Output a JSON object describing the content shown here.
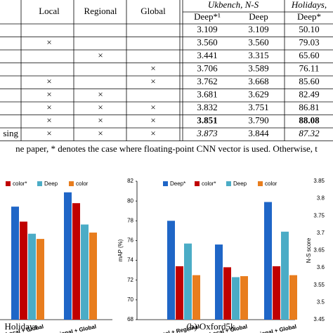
{
  "table": {
    "group_headers": [
      "Local",
      "Regional",
      "Global",
      "Ukbench, N-S",
      "Holidays,"
    ],
    "subheaders": [
      "Deep*¹",
      "Deep",
      "Deep*"
    ],
    "rows": [
      [
        null,
        null,
        null,
        null,
        "3.109",
        "3.109",
        "50.10"
      ],
      [
        null,
        "×",
        null,
        null,
        "3.560",
        "3.560",
        "79.03"
      ],
      [
        null,
        null,
        "×",
        null,
        "3.441",
        "3.315",
        "65.60"
      ],
      [
        null,
        null,
        null,
        "×",
        "3.706",
        "3.589",
        "76.11"
      ],
      [
        null,
        "×",
        null,
        "×",
        "3.762",
        "3.668",
        "85.60"
      ],
      [
        null,
        "×",
        "×",
        null,
        "3.681",
        "3.629",
        "82.49"
      ],
      [
        null,
        "×",
        "×",
        "×",
        "3.832",
        "3.751",
        "86.81"
      ],
      [
        null,
        "×",
        "×",
        "×",
        "3.851",
        "3.790",
        "88.08"
      ],
      [
        "sing",
        "×",
        "×",
        "×",
        "3.873",
        "3.844",
        "87.32"
      ]
    ]
  },
  "caption": "ne paper, * denotes the case where floating-point CNN vector is used. Otherwise, t",
  "chart_data": [
    {
      "type": "bar",
      "caption": "Holidays",
      "categories": [
        "Local + Global",
        "Local + Regional + Global"
      ],
      "ylim": [
        66,
        90
      ],
      "series": [
        {
          "color": "#1f66c7",
          "values": [
            85.6,
            88.08
          ]
        },
        {
          "name": "color*",
          "color": "#c00000",
          "values": [
            83.0,
            86.2
          ]
        },
        {
          "name": "Deep",
          "color": "#4bacc6",
          "values": [
            80.9,
            82.5
          ]
        },
        {
          "name": "color",
          "color": "#e87d1e",
          "values": [
            80.0,
            81.1
          ]
        }
      ]
    },
    {
      "type": "bar",
      "caption": "(b) Oxford5k",
      "ylabel": "mAP (%)",
      "categories": [
        "Local + Regional",
        "Local + Global",
        "Local + Regional + Global"
      ],
      "ylim": [
        68,
        82
      ],
      "yticks": [
        68,
        70,
        72,
        74,
        76,
        78,
        80,
        82
      ],
      "series": [
        {
          "name": "Deep*",
          "color": "#1f66c7",
          "values": [
            78,
            75.6,
            79.9
          ]
        },
        {
          "name": "color*",
          "color": "#c00000",
          "values": [
            73.4,
            73.3,
            73.4
          ]
        },
        {
          "name": "Deep",
          "color": "#4bacc6",
          "values": [
            75.7,
            72.3,
            76.9
          ]
        },
        {
          "name": "color",
          "color": "#e87d1e",
          "values": [
            72.5,
            72.4,
            72.5
          ]
        }
      ]
    },
    {
      "type": "axis",
      "ylabel": "N-S score",
      "ylim": [
        3.45,
        3.85
      ],
      "yticks": [
        3.45,
        3.5,
        3.55,
        3.6,
        3.65,
        3.7,
        3.75,
        3.8,
        3.85
      ]
    }
  ]
}
